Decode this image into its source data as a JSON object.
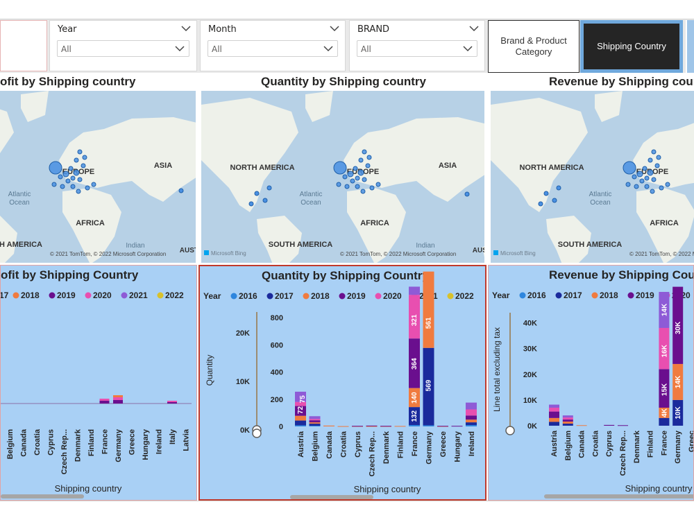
{
  "filters": {
    "year": {
      "title": "Year",
      "value": "All"
    },
    "month": {
      "title": "Month",
      "value": "All"
    },
    "brand": {
      "title": "BRAND",
      "value": "All"
    }
  },
  "nav": {
    "brand_product": "Brand & Product Category",
    "shipping_country": "Shipping Country"
  },
  "maps": {
    "titles": [
      "ofit by Shipping country",
      "Quantity by Shipping country",
      "Revenue by Shipping cour"
    ],
    "labels": {
      "north_america": "NORTH AMERICA",
      "europe": "EUROPE",
      "asia": "ASIA",
      "africa": "AFRICA",
      "south_america": "SOUTH AMERICA",
      "south_america_cut": "H AMERICA",
      "atlantic": "Atlantic",
      "ocean": "Ocean",
      "indian": "Indian",
      "austr": "AUSTR",
      "copyright": "© 2021 TomTom, © 2022 Microsoft Corporation",
      "bing": "Microsoft Bing"
    }
  },
  "charts": {
    "titles": [
      "ofit by Shipping Country",
      "Quantity by Shipping Country",
      "Revenue by Shipping Cour"
    ],
    "legend": {
      "title": "Year",
      "items": [
        {
          "label": "2016",
          "color": "#2e86de"
        },
        {
          "label": "2017",
          "color": "#1a2a9c"
        },
        {
          "label": "2018",
          "color": "#f07b3f"
        },
        {
          "label": "2019",
          "color": "#6a0f8e"
        },
        {
          "label": "2020",
          "color": "#e84fb0"
        },
        {
          "label": "2021",
          "color": "#8e5bd6"
        },
        {
          "label": "2022",
          "color": "#d8c12b"
        }
      ],
      "partial_first": "17"
    },
    "xaxis_title": "Shipping country"
  },
  "chart_data": [
    {
      "type": "bar",
      "title": "Profit by Shipping Country",
      "categories": [
        "Belgium",
        "Canada",
        "Croatia",
        "Cyprus",
        "Czech Rep...",
        "Denmark",
        "Finland",
        "France",
        "Germany",
        "Greece",
        "Hungary",
        "Ireland",
        "Italy",
        "Latvia"
      ],
      "xlabel": "Shipping country"
    },
    {
      "type": "bar",
      "title": "Quantity by Shipping Country",
      "categories": [
        "Austria",
        "Belgium",
        "Canada",
        "Croatia",
        "Cyprus",
        "Czech Rep...",
        "Denmark",
        "Finland",
        "France",
        "Germany",
        "Greece",
        "Hungary",
        "Ireland"
      ],
      "xlabel": "Shipping country",
      "ylabel": "Quantity",
      "yticks": [
        "0",
        "200",
        "400",
        "600",
        "800"
      ],
      "slider_ticks": [
        "0K",
        "10K",
        "20K"
      ],
      "ylim": [
        0,
        800
      ],
      "series": [
        {
          "name": "2016",
          "values": [
            8,
            5,
            0,
            0,
            0,
            0,
            0,
            0,
            10,
            8,
            0,
            0,
            10
          ]
        },
        {
          "name": "2017",
          "values": [
            35,
            15,
            0,
            0,
            0,
            0,
            0,
            0,
            132,
            569,
            0,
            0,
            20
          ]
        },
        {
          "name": "2018",
          "values": [
            35,
            10,
            6,
            2,
            2,
            2,
            2,
            3,
            140,
            561,
            2,
            0,
            20
          ]
        },
        {
          "name": "2019",
          "values": [
            72,
            15,
            0,
            0,
            2,
            4,
            2,
            0,
            364,
            0,
            2,
            4,
            30
          ]
        },
        {
          "name": "2020",
          "values": [
            30,
            10,
            0,
            0,
            0,
            0,
            0,
            0,
            321,
            0,
            0,
            0,
            45
          ]
        },
        {
          "name": "2021",
          "values": [
            75,
            20,
            0,
            0,
            0,
            0,
            0,
            0,
            60,
            0,
            0,
            0,
            50
          ]
        }
      ],
      "data_labels": [
        "72",
        "75",
        "132",
        "140",
        "364",
        "321",
        "569",
        "561"
      ]
    },
    {
      "type": "bar",
      "title": "Revenue by Shipping Country",
      "categories": [
        "Austria",
        "Belgium",
        "Canada",
        "Croatia",
        "Cyprus",
        "Czech Rep...",
        "Denmark",
        "Finland",
        "France",
        "Germany",
        "Greec"
      ],
      "xlabel": "Shipping country",
      "ylabel": "Line total excluding tax",
      "yticks": [
        "0K",
        "10K",
        "20K",
        "30K",
        "40K"
      ],
      "ylim": [
        0,
        45000
      ],
      "series": [
        {
          "name": "2017",
          "values": [
            1500,
            800,
            0,
            0,
            0,
            0,
            0,
            0,
            3000,
            10000,
            0
          ]
        },
        {
          "name": "2018",
          "values": [
            1500,
            800,
            200,
            0,
            0,
            0,
            0,
            0,
            4000,
            14000,
            0
          ]
        },
        {
          "name": "2019",
          "values": [
            2500,
            800,
            0,
            0,
            300,
            200,
            0,
            0,
            15000,
            30000,
            0
          ]
        },
        {
          "name": "2020",
          "values": [
            1500,
            800,
            0,
            0,
            0,
            0,
            0,
            0,
            16000,
            0,
            0
          ]
        },
        {
          "name": "2021",
          "values": [
            1200,
            800,
            0,
            0,
            0,
            0,
            0,
            0,
            14000,
            0,
            0
          ]
        }
      ],
      "data_labels": [
        "4K",
        "15K",
        "16K",
        "14K",
        "10K",
        "14K",
        "30K"
      ]
    }
  ]
}
